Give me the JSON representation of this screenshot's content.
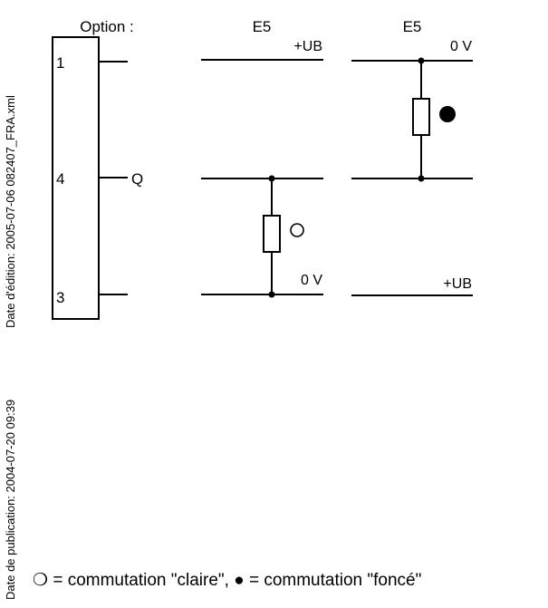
{
  "header": {
    "option_label": "Option :",
    "col1_label": "E5",
    "col2_label": "E5"
  },
  "connector": {
    "pin_top": "1",
    "pin_mid": "4",
    "pin_bottom": "3",
    "output_label": "Q"
  },
  "circuit_light": {
    "top_rail": "+UB",
    "bottom_rail": "0 V",
    "switch_symbol": "○"
  },
  "circuit_dark": {
    "top_rail": "0 V",
    "bottom_rail": "+UB",
    "switch_symbol": "●"
  },
  "side_meta": {
    "edition": "Date d'édition: 2005-07-06   082407_FRA.xml",
    "publication": "Date de publication: 2004-07-20 09:39"
  },
  "legend": {
    "light_symbol": "❍",
    "light_text": " = commutation \"claire\", ",
    "dark_symbol": "●",
    "dark_text": " = commutation \"foncé\""
  }
}
